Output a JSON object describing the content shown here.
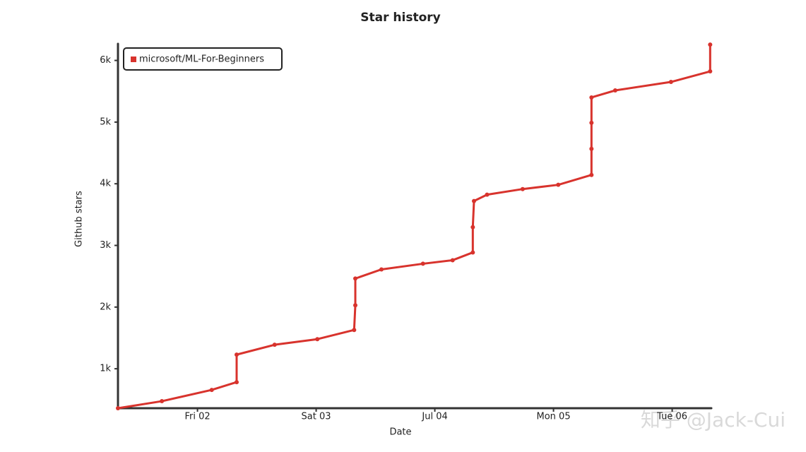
{
  "chart_data": {
    "type": "line",
    "title": "Star history",
    "x_label": "Date",
    "y_label": "Github stars",
    "x": [
      1.33,
      1.7,
      2.12,
      2.33,
      2.33,
      2.65,
      3.01,
      3.32,
      3.33,
      3.33,
      3.55,
      3.9,
      4.15,
      4.32,
      4.32,
      4.33,
      4.44,
      4.74,
      5.04,
      5.32,
      5.32,
      5.32,
      5.32,
      5.52,
      5.99,
      6.32,
      6.32
    ],
    "series": [
      {
        "name": "microsoft/ML-For-Beginners",
        "color": "#d8332d",
        "values": [
          360,
          474,
          657,
          783,
          1229,
          1389,
          1480,
          1629,
          2029,
          2463,
          2611,
          2703,
          2760,
          2886,
          3297,
          3720,
          3823,
          3914,
          3983,
          4143,
          4566,
          4989,
          5400,
          5514,
          5651,
          5823,
          6257
        ]
      }
    ],
    "xlim": [
      1.33,
      6.33
    ],
    "xticks": [
      {
        "value": 2,
        "label": "Fri 02"
      },
      {
        "value": 3,
        "label": "Sat 03"
      },
      {
        "value": 4,
        "label": "Jul 04"
      },
      {
        "value": 5,
        "label": "Mon 05"
      },
      {
        "value": 6,
        "label": "Tue 06"
      }
    ],
    "ylim": [
      360,
      6270
    ],
    "yticks": [
      {
        "value": 1000,
        "label": "1k"
      },
      {
        "value": 2000,
        "label": "2k"
      },
      {
        "value": 3000,
        "label": "3k"
      },
      {
        "value": 4000,
        "label": "4k"
      },
      {
        "value": 5000,
        "label": "5k"
      },
      {
        "value": 6000,
        "label": "6k"
      }
    ],
    "legend": "top-left",
    "watermark": "知乎 @Jack-Cui"
  }
}
